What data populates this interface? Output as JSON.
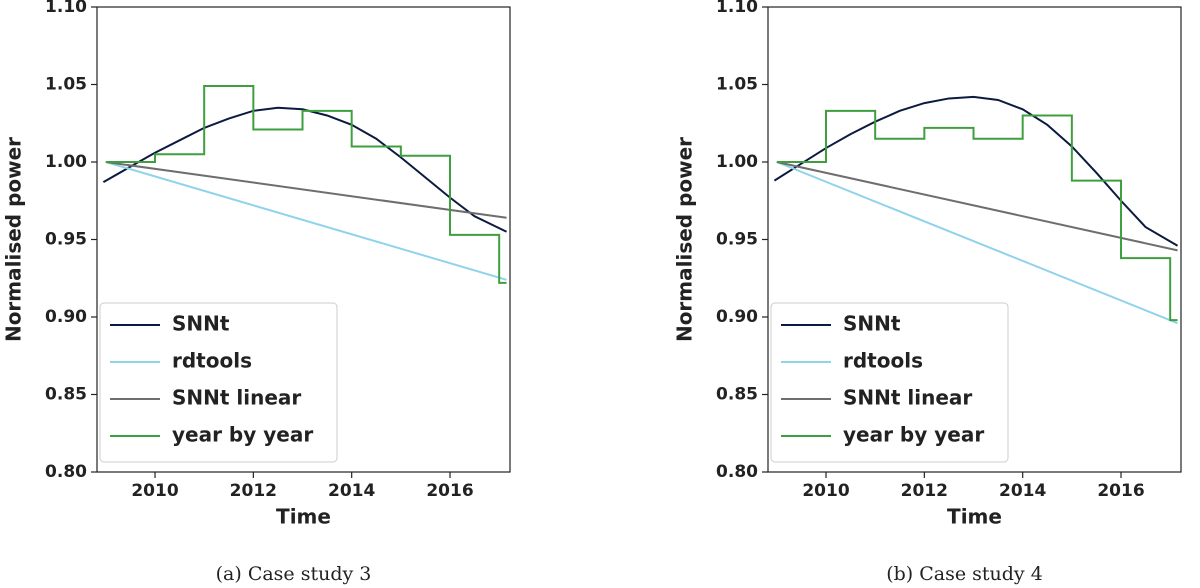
{
  "chart_data": [
    {
      "type": "line",
      "caption": "(a) Case study 3",
      "xlabel": "Time",
      "ylabel": "Normalised power",
      "xlim": [
        2008.82,
        2017.22
      ],
      "xticks": [
        2010,
        2012,
        2014,
        2016
      ],
      "ylim": [
        0.8,
        1.1
      ],
      "yticks": [
        {
          "value": 0.8,
          "label": "0.80"
        },
        0.85,
        {
          "value": 0.9,
          "label": "0.90"
        },
        0.95,
        {
          "value": 1.0,
          "label": "1.00"
        },
        1.05,
        {
          "value": 1.1,
          "label": "1.10"
        }
      ],
      "legend": "lower left",
      "series": [
        {
          "name": "SNNt",
          "color": "#0d1a40",
          "x": [
            2008.95,
            2009.5,
            2010,
            2010.5,
            2011,
            2011.5,
            2012,
            2012.5,
            2013,
            2013.5,
            2014,
            2014.5,
            2015,
            2015.5,
            2016,
            2016.5,
            2017.15
          ],
          "values": [
            0.987,
            0.997,
            1.006,
            1.014,
            1.022,
            1.028,
            1.033,
            1.035,
            1.034,
            1.03,
            1.024,
            1.015,
            1.003,
            0.99,
            0.977,
            0.965,
            0.955
          ]
        },
        {
          "name": "rdtools",
          "color": "#8fd3ec",
          "x": [
            2009,
            2017.15
          ],
          "values": [
            1.0,
            0.924
          ]
        },
        {
          "name": "SNNt linear",
          "color": "#6e6e6e",
          "x": [
            2009,
            2017.15
          ],
          "values": [
            1.0,
            0.964
          ]
        },
        {
          "name": "year by year",
          "color": "#3f9f3f",
          "step": true,
          "x": [
            2009,
            2010,
            2011,
            2012,
            2013,
            2014,
            2015,
            2016,
            2017,
            2017.15
          ],
          "values": [
            1.0,
            1.005,
            1.049,
            1.021,
            1.033,
            1.01,
            1.004,
            0.953,
            0.922,
            0.922
          ]
        }
      ]
    },
    {
      "type": "line",
      "caption": "(b) Case study 4",
      "xlabel": "Time",
      "ylabel": "Normalised power",
      "xlim": [
        2008.82,
        2017.22
      ],
      "xticks": [
        2010,
        2012,
        2014,
        2016
      ],
      "ylim": [
        0.8,
        1.1
      ],
      "yticks": [
        {
          "value": 0.8,
          "label": "0.80"
        },
        0.85,
        {
          "value": 0.9,
          "label": "0.90"
        },
        0.95,
        {
          "value": 1.0,
          "label": "1.00"
        },
        1.05,
        {
          "value": 1.1,
          "label": "1.10"
        }
      ],
      "legend": "lower left",
      "series": [
        {
          "name": "SNNt",
          "color": "#0d1a40",
          "x": [
            2008.95,
            2009.5,
            2010,
            2010.5,
            2011,
            2011.5,
            2012,
            2012.5,
            2013,
            2013.5,
            2014,
            2014.5,
            2015,
            2015.5,
            2016,
            2016.5,
            2017.15
          ],
          "values": [
            0.988,
            0.999,
            1.009,
            1.018,
            1.026,
            1.033,
            1.038,
            1.041,
            1.042,
            1.04,
            1.034,
            1.024,
            1.01,
            0.993,
            0.975,
            0.958,
            0.946
          ]
        },
        {
          "name": "rdtools",
          "color": "#8fd3ec",
          "x": [
            2009,
            2017.15
          ],
          "values": [
            1.0,
            0.896
          ]
        },
        {
          "name": "SNNt linear",
          "color": "#6e6e6e",
          "x": [
            2009,
            2017.15
          ],
          "values": [
            1.0,
            0.943
          ]
        },
        {
          "name": "year by year",
          "color": "#3f9f3f",
          "step": true,
          "x": [
            2009,
            2010,
            2011,
            2012,
            2013,
            2014,
            2015,
            2016,
            2017,
            2017.15
          ],
          "values": [
            1.0,
            1.033,
            1.015,
            1.022,
            1.015,
            1.03,
            0.988,
            0.938,
            0.898,
            0.898
          ]
        }
      ]
    }
  ]
}
